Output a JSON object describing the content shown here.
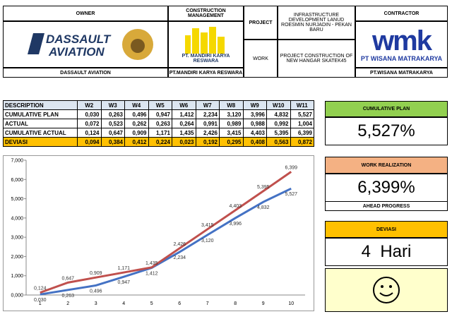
{
  "header": {
    "owner": {
      "label": "OWNER",
      "logo_lines": [
        "DASSAULT",
        "AVIATION"
      ],
      "caption": "DASSAULT AVIATION"
    },
    "construction_management": {
      "label": "CONSTRUCTION MANAGEMENT",
      "logo_text": "PT. MANDIRI KARYA RESWARA",
      "caption": "PT.MANDIRI KARYA RESWARA"
    },
    "project": {
      "label": "PROJECT",
      "text": "INFRASTRUCTURE DEVELOPMENT LANUD ROESMIN NURJADIN - PEKAN BARU"
    },
    "work": {
      "label": "WORK",
      "text": "PROJECT CONSTRUCTION OF NEW HANGAR SKATEK45"
    },
    "contractor": {
      "label": "CONTRACTOR",
      "logo_mark": "wmk",
      "logo_text": "PT WISANA MATRAKARYA",
      "caption": "PT.WISANA MATRAKARYA"
    }
  },
  "table": {
    "header": [
      "DESCRIPTION",
      "W2",
      "W3",
      "W4",
      "W5",
      "W6",
      "W7",
      "W8",
      "W9",
      "W10",
      "W11"
    ],
    "rows": [
      [
        "CUMULATIVE PLAN",
        "0,030",
        "0,263",
        "0,496",
        "0,947",
        "1,412",
        "2,234",
        "3,120",
        "3,996",
        "4,832",
        "5,527"
      ],
      [
        "ACTUAL",
        "0,072",
        "0,523",
        "0,262",
        "0,263",
        "0,264",
        "0,991",
        "0,989",
        "0,988",
        "0,992",
        "1,004"
      ],
      [
        "CUMULATIVE ACTUAL",
        "0,124",
        "0,647",
        "0,909",
        "1,171",
        "1,435",
        "2,426",
        "3,415",
        "4,403",
        "5,395",
        "6,399"
      ],
      [
        "DEVIASI",
        "0,094",
        "0,384",
        "0,412",
        "0,224",
        "0,023",
        "0,192",
        "0,295",
        "0,408",
        "0,563",
        "0,872"
      ]
    ]
  },
  "chart_data": {
    "type": "line",
    "categories": [
      "1",
      "2",
      "3",
      "4",
      "5",
      "6",
      "7",
      "8",
      "9",
      "10"
    ],
    "series": [
      {
        "color": "#4472c4",
        "values": [
          0.03,
          0.263,
          0.496,
          0.947,
          1.412,
          2.234,
          3.12,
          3.996,
          4.832,
          5.527
        ],
        "value_labels": [
          "0,030",
          "0,263",
          "0,496",
          "0,947",
          "1,412",
          "2,234",
          "3,120",
          "3,996",
          "4,832",
          "5,527"
        ]
      },
      {
        "color": "#c0504d",
        "values": [
          0.124,
          0.647,
          0.909,
          1.171,
          1.435,
          2.426,
          3.415,
          4.403,
          5.395,
          6.399
        ],
        "value_labels": [
          "0,124",
          "0,647",
          "0,909",
          "1,171",
          "1,435",
          "2,426",
          "3,415",
          "4,403",
          "5,395",
          "6,399"
        ]
      }
    ],
    "ylim": [
      0,
      7
    ],
    "yticks": [
      {
        "value": 0,
        "label": "0,000"
      },
      {
        "value": 1,
        "label": "1,000"
      },
      {
        "value": 2,
        "label": "2,000"
      },
      {
        "value": 3,
        "label": "3,000"
      },
      {
        "value": 4,
        "label": "4,000"
      },
      {
        "value": 5,
        "label": "5,000"
      },
      {
        "value": 6,
        "label": "6,000"
      },
      {
        "value": 7,
        "label": "7,000"
      }
    ],
    "grid": false
  },
  "cards": {
    "plan": {
      "title": "CUMULATIVE PLAN",
      "value": "5,527%"
    },
    "realization": {
      "title": "WORK REALIZATION",
      "value": "6,399%",
      "note": "AHEAD PROGRESS"
    },
    "deviasi": {
      "title": "DEVIASI",
      "value": "4  Hari"
    }
  }
}
